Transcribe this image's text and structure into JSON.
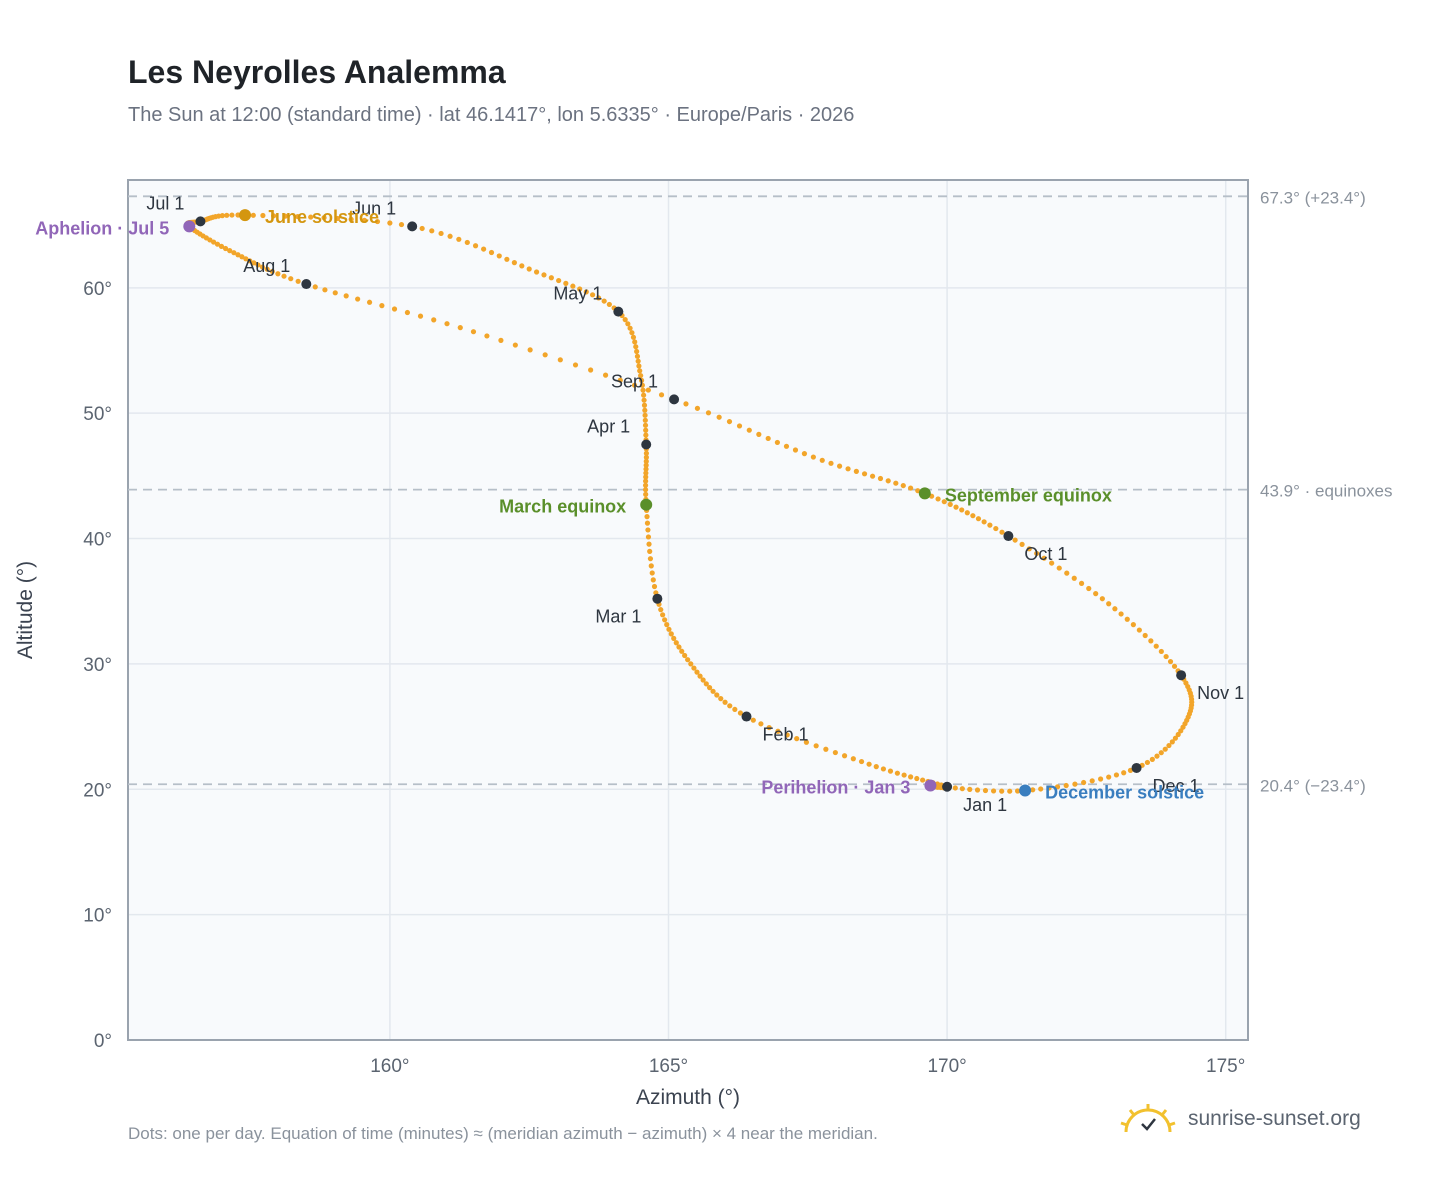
{
  "title": "Les Neyrolles Analemma",
  "subtitle": "The Sun at 12:00 (standard time) · lat 46.1417°, lon 5.6335° · Europe/Paris · 2026",
  "footer_note": "Dots: one per day. Equation of time (minutes) ≈ (meridian azimuth − azimuth) × 4 near the meridian.",
  "brand": "sunrise-sunset.org",
  "colors": {
    "curve": "#f2a52a",
    "month_marker": "#2e3640",
    "solstice_june": "#d4960f",
    "solstice_december": "#3a7ebf",
    "equinox": "#5a8f2a",
    "apsis": "#9166b8",
    "grid": "#e3e8ee",
    "plot_bg": "#f8fafc",
    "frame": "#9aa3ae",
    "ref_line": "#b6bfc8"
  },
  "chart_data": {
    "type": "scatter",
    "xlabel": "Azimuth (°)",
    "ylabel": "Altitude (°)",
    "xlim": [
      155.3,
      175.4
    ],
    "ylim": [
      0,
      68.6
    ],
    "xticks": [
      160,
      165,
      170,
      175
    ],
    "xtick_labels": [
      "160°",
      "165°",
      "170°",
      "175°"
    ],
    "yticks": [
      0,
      10,
      20,
      30,
      40,
      50,
      60
    ],
    "ytick_labels": [
      "0°",
      "10°",
      "20°",
      "30°",
      "40°",
      "50°",
      "60°"
    ],
    "grid": true,
    "reference_lines": [
      {
        "y": 67.3,
        "label": "67.3° (+23.4°)"
      },
      {
        "y": 43.9,
        "label": "43.9° · equinoxes"
      },
      {
        "y": 20.4,
        "label": "20.4° (−23.4°)"
      }
    ],
    "daily_path": [
      {
        "date": "Jan 1",
        "az": 170.0,
        "alt": 20.2
      },
      {
        "date": "Jan 15",
        "az": 168.6,
        "alt": 22.0
      },
      {
        "date": "Feb 1",
        "az": 166.4,
        "alt": 25.8
      },
      {
        "date": "Feb 15",
        "az": 165.4,
        "alt": 30.0
      },
      {
        "date": "Mar 1",
        "az": 164.8,
        "alt": 35.2
      },
      {
        "date": "Mar 20",
        "az": 164.6,
        "alt": 42.7
      },
      {
        "date": "Apr 1",
        "az": 164.6,
        "alt": 47.5
      },
      {
        "date": "Apr 15",
        "az": 164.5,
        "alt": 53.0
      },
      {
        "date": "May 1",
        "az": 164.1,
        "alt": 58.1
      },
      {
        "date": "May 15",
        "az": 162.5,
        "alt": 61.5
      },
      {
        "date": "Jun 1",
        "az": 160.4,
        "alt": 64.9
      },
      {
        "date": "Jun 21",
        "az": 157.4,
        "alt": 65.8
      },
      {
        "date": "Jul 1",
        "az": 156.6,
        "alt": 65.3
      },
      {
        "date": "Jul 5",
        "az": 156.4,
        "alt": 64.9
      },
      {
        "date": "Jul 15",
        "az": 157.2,
        "alt": 62.8
      },
      {
        "date": "Aug 1",
        "az": 158.5,
        "alt": 60.3
      },
      {
        "date": "Aug 15",
        "az": 161.5,
        "alt": 56.5
      },
      {
        "date": "Sep 1",
        "az": 165.1,
        "alt": 51.1
      },
      {
        "date": "Sep 15",
        "az": 167.6,
        "alt": 46.5
      },
      {
        "date": "Sep 23",
        "az": 169.6,
        "alt": 43.6
      },
      {
        "date": "Oct 1",
        "az": 171.1,
        "alt": 40.2
      },
      {
        "date": "Oct 15",
        "az": 172.9,
        "alt": 34.8
      },
      {
        "date": "Nov 1",
        "az": 174.2,
        "alt": 29.1
      },
      {
        "date": "Nov 15",
        "az": 174.3,
        "alt": 25.5
      },
      {
        "date": "Dec 1",
        "az": 173.4,
        "alt": 21.7
      },
      {
        "date": "Dec 21",
        "az": 171.4,
        "alt": 19.9
      },
      {
        "date": "Jan 3",
        "az": 169.7,
        "alt": 20.3
      }
    ],
    "month_markers": [
      {
        "label": "Jan 1",
        "az": 170.0,
        "alt": 20.2,
        "anchor": "start",
        "dx": 16,
        "dy": 24
      },
      {
        "label": "Feb 1",
        "az": 166.4,
        "alt": 25.8,
        "anchor": "start",
        "dx": 16,
        "dy": 24
      },
      {
        "label": "Mar 1",
        "az": 164.8,
        "alt": 35.2,
        "anchor": "end",
        "dx": -16,
        "dy": 24
      },
      {
        "label": "Apr 1",
        "az": 164.6,
        "alt": 47.5,
        "anchor": "end",
        "dx": -16,
        "dy": -12
      },
      {
        "label": "May 1",
        "az": 164.1,
        "alt": 58.1,
        "anchor": "end",
        "dx": -16,
        "dy": -12
      },
      {
        "label": "Jun 1",
        "az": 160.4,
        "alt": 64.9,
        "anchor": "end",
        "dx": -16,
        "dy": -12
      },
      {
        "label": "Jul 1",
        "az": 156.6,
        "alt": 65.3,
        "anchor": "end",
        "dx": -16,
        "dy": -12
      },
      {
        "label": "Aug 1",
        "az": 158.5,
        "alt": 60.3,
        "anchor": "end",
        "dx": -16,
        "dy": -12
      },
      {
        "label": "Sep 1",
        "az": 165.1,
        "alt": 51.1,
        "anchor": "end",
        "dx": -16,
        "dy": -12
      },
      {
        "label": "Oct 1",
        "az": 171.1,
        "alt": 40.2,
        "anchor": "start",
        "dx": 16,
        "dy": 24
      },
      {
        "label": "Nov 1",
        "az": 174.2,
        "alt": 29.1,
        "anchor": "start",
        "dx": 16,
        "dy": 24
      },
      {
        "label": "Dec 1",
        "az": 173.4,
        "alt": 21.7,
        "anchor": "start",
        "dx": 16,
        "dy": 24
      }
    ],
    "events": [
      {
        "label": "June solstice",
        "az": 157.4,
        "alt": 65.8,
        "color": "#d4960f",
        "anchor": "start",
        "dx": 20,
        "dy": 8
      },
      {
        "label": "December solstice",
        "az": 171.4,
        "alt": 19.9,
        "color": "#3a7ebf",
        "anchor": "start",
        "dx": 20,
        "dy": 8
      },
      {
        "label": "March equinox",
        "az": 164.6,
        "alt": 42.7,
        "color": "#5a8f2a",
        "anchor": "end",
        "dx": -20,
        "dy": 8
      },
      {
        "label": "September equinox",
        "az": 169.6,
        "alt": 43.6,
        "color": "#5a8f2a",
        "anchor": "start",
        "dx": 20,
        "dy": 8
      },
      {
        "label": "Aphelion · Jul 5",
        "az": 156.4,
        "alt": 64.9,
        "color": "#9166b8",
        "anchor": "end",
        "dx": -20,
        "dy": 8
      },
      {
        "label": "Perihelion · Jan 3",
        "az": 169.7,
        "alt": 20.3,
        "color": "#9166b8",
        "anchor": "end",
        "dx": -20,
        "dy": 8
      }
    ]
  }
}
